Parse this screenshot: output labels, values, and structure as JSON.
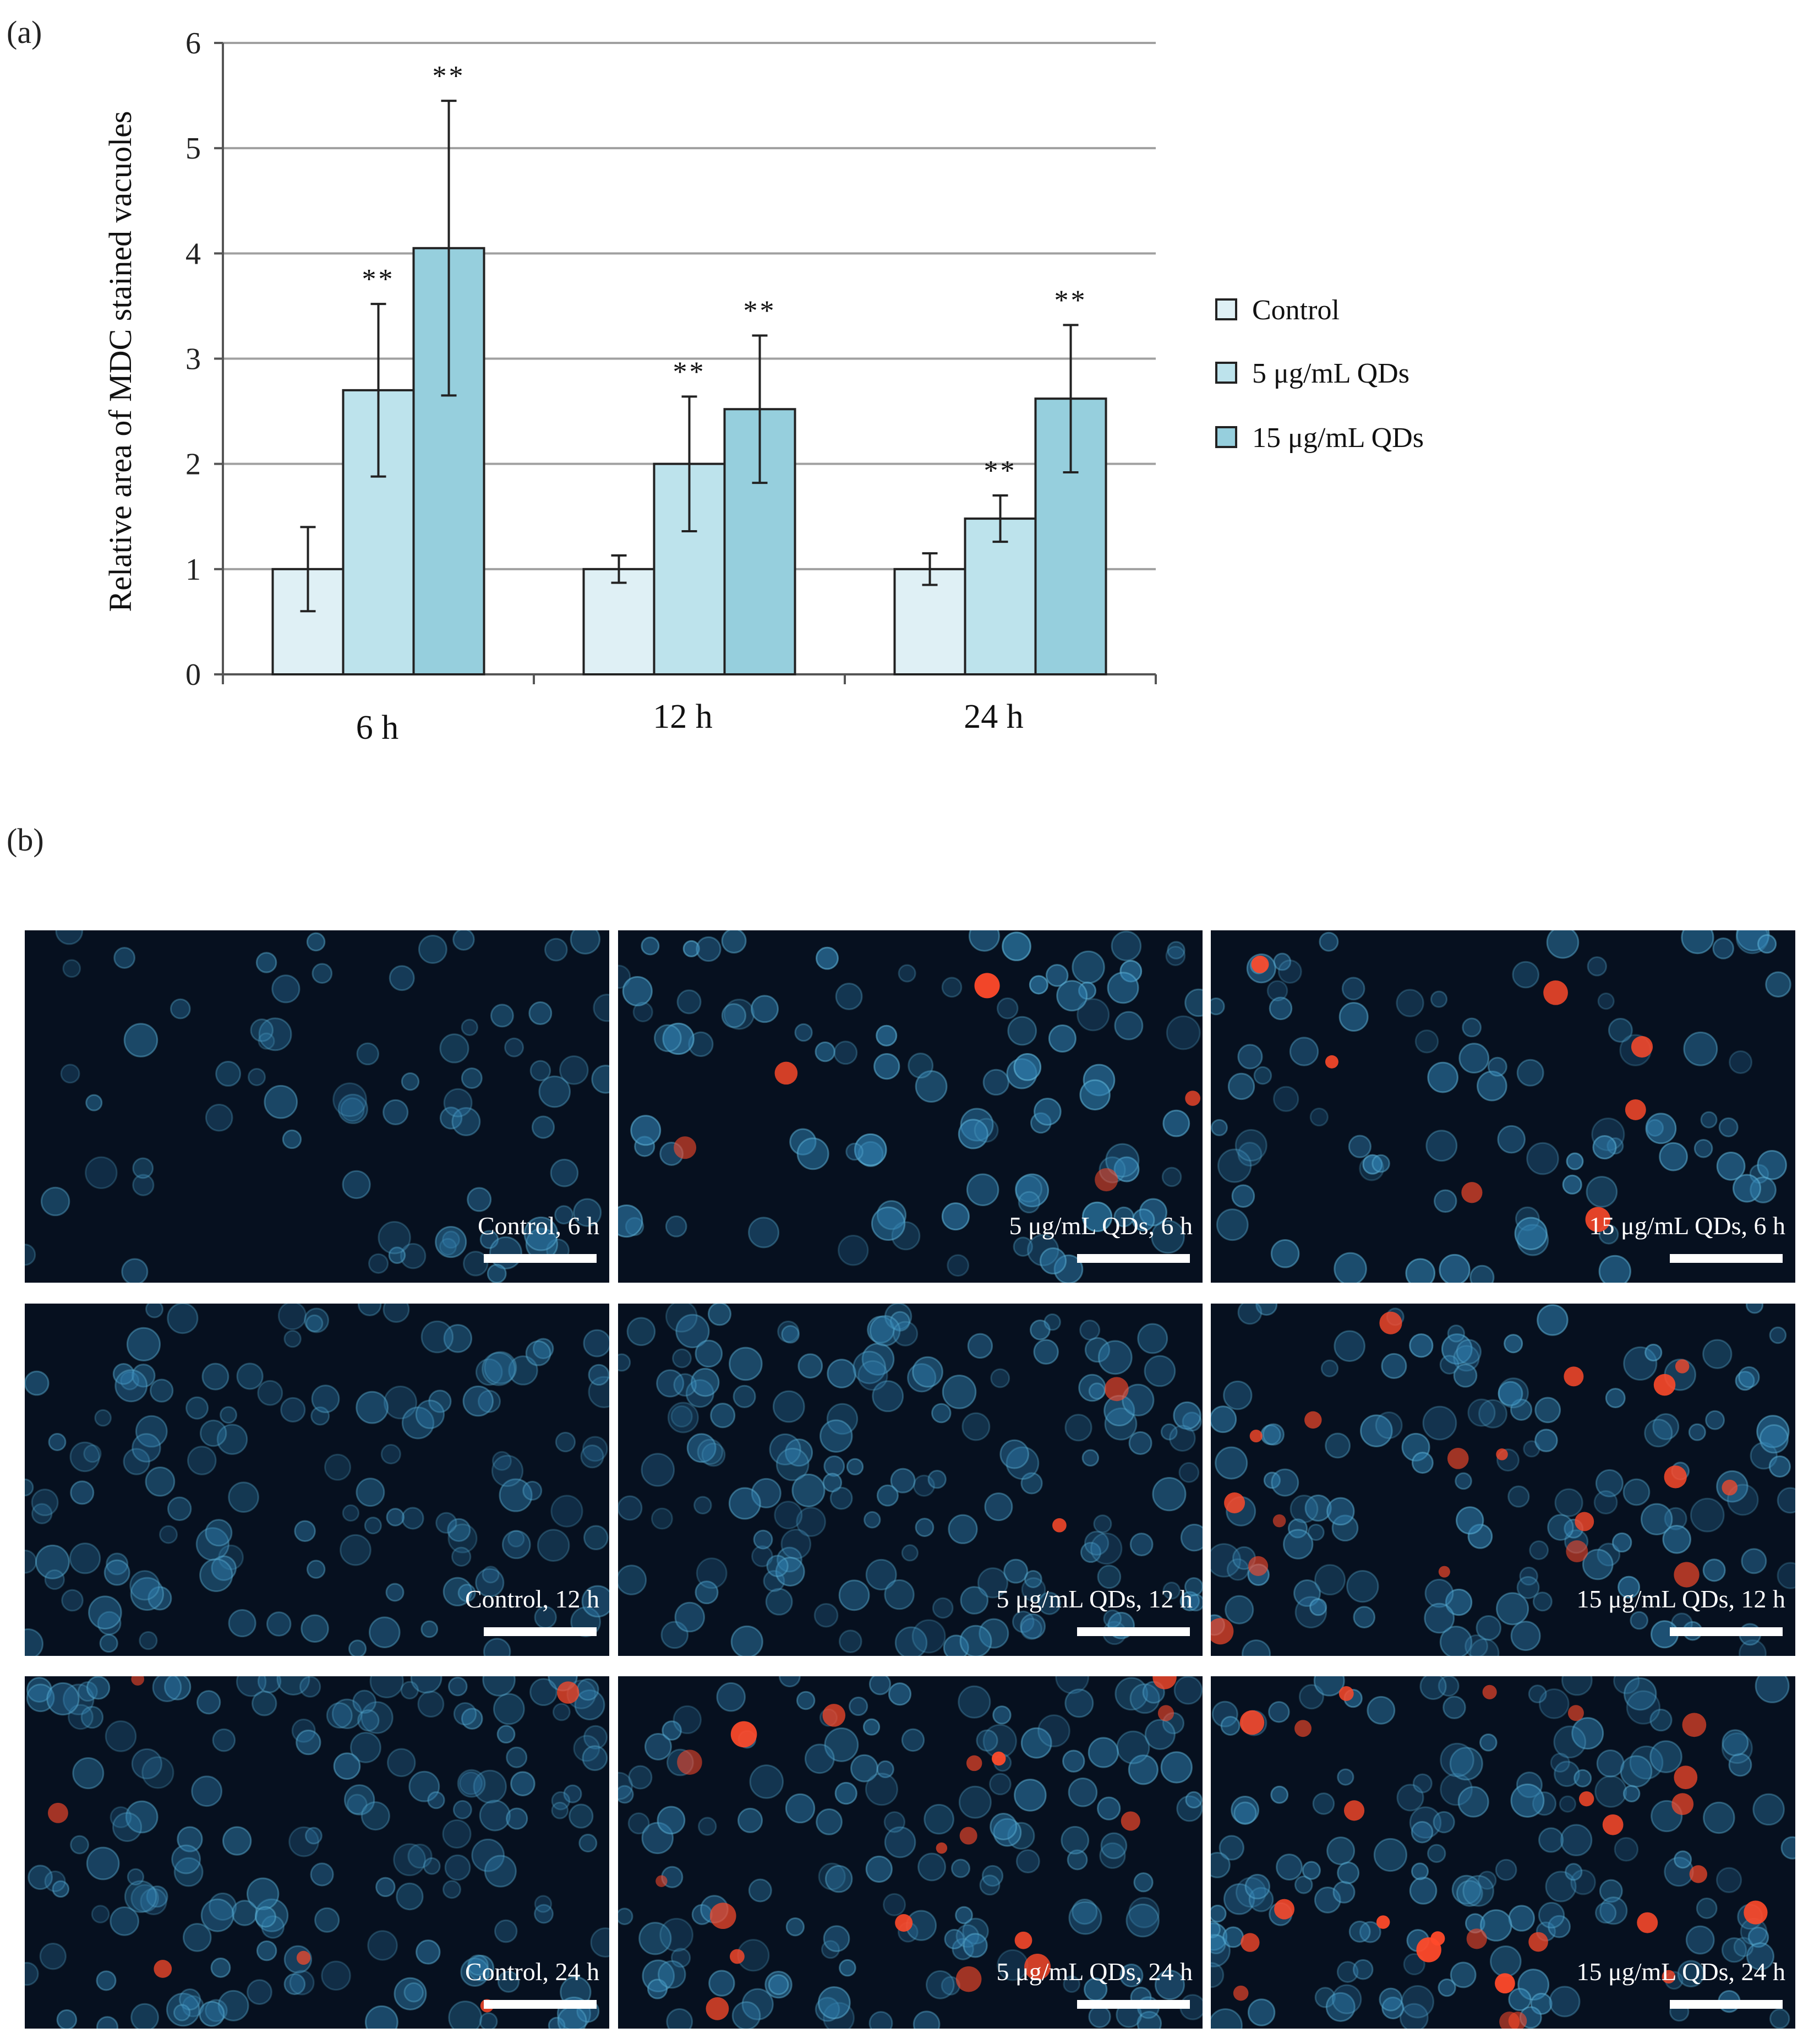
{
  "panel_a_label": "(a)",
  "panel_b_label": "(b)",
  "colors": {
    "control": "#dff0f5",
    "qd5": "#bde3ec",
    "qd15": "#96cfdd",
    "gridline": "#a0a0a0",
    "axis": "#555555"
  },
  "chart_data": {
    "type": "bar",
    "title": "",
    "xlabel": "",
    "ylabel": "Relative area of MDC stained vacuoles",
    "ylim": [
      0,
      6
    ],
    "yticks": [
      0,
      1,
      2,
      3,
      4,
      5,
      6
    ],
    "grid": true,
    "legend_position": "right",
    "categories": [
      "6 h",
      "12 h",
      "24 h"
    ],
    "series": [
      {
        "name": "Control",
        "values": [
          1.0,
          1.0,
          1.0
        ],
        "errors": [
          0.4,
          0.13,
          0.15
        ],
        "significance": [
          "",
          "",
          ""
        ]
      },
      {
        "name": "5 μg/mL QDs",
        "values": [
          2.7,
          2.0,
          1.48
        ],
        "errors": [
          0.82,
          0.64,
          0.22
        ],
        "significance": [
          "**",
          "**",
          "**"
        ]
      },
      {
        "name": "15 μg/mL QDs",
        "values": [
          4.05,
          2.52,
          2.62
        ],
        "errors": [
          1.4,
          0.7,
          0.7
        ],
        "significance": [
          "**",
          "**",
          "**"
        ]
      }
    ]
  },
  "micrographs": {
    "rows": [
      [
        "Control, 6 h",
        "5 μg/mL QDs, 6 h",
        "15 μg/mL QDs, 6 h"
      ],
      [
        "Control, 12 h",
        "5 μg/mL QDs, 12 h",
        "15 μg/mL QDs, 12 h"
      ],
      [
        "Control, 24 h",
        "5 μg/mL QDs, 24 h",
        "15 μg/mL QDs, 24 h"
      ]
    ],
    "background_color": "#06101f",
    "cell_color": "#2f7fb0",
    "vacuole_color": "#ff4a2a"
  }
}
